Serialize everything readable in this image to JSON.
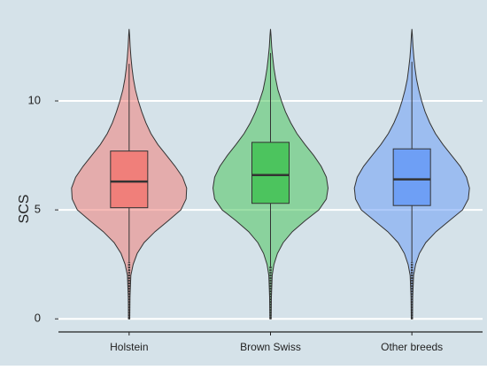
{
  "chart_data": {
    "type": "violin",
    "y_label": "SCS",
    "ylim": [
      -0.6,
      13.9
    ],
    "yticks": [
      0,
      5,
      10
    ],
    "grid": true,
    "density_y": [
      0,
      1,
      2,
      2.5,
      3,
      3.5,
      4,
      4.5,
      5,
      5.5,
      6,
      6.5,
      7,
      7.5,
      8,
      8.5,
      9,
      9.5,
      10,
      10.5,
      11,
      11.5,
      12,
      12.5,
      13,
      13.3
    ],
    "series": [
      {
        "name": "Holstein",
        "color": "#f07f7a",
        "q1": 5.1,
        "median": 6.3,
        "q3": 7.7,
        "whislo": 2.6,
        "whishi": 11.7,
        "density": [
          0.01,
          0.015,
          0.03,
          0.07,
          0.14,
          0.26,
          0.45,
          0.68,
          0.9,
          0.99,
          1.0,
          0.93,
          0.8,
          0.65,
          0.5,
          0.38,
          0.29,
          0.22,
          0.16,
          0.11,
          0.075,
          0.05,
          0.032,
          0.018,
          0.008,
          0
        ]
      },
      {
        "name": "Brown Swiss",
        "color": "#4cc45e",
        "q1": 5.3,
        "median": 6.6,
        "q3": 8.1,
        "whislo": 2.4,
        "whishi": 12.2,
        "density": [
          0.01,
          0.015,
          0.03,
          0.06,
          0.12,
          0.22,
          0.38,
          0.6,
          0.84,
          0.97,
          1.0,
          0.97,
          0.88,
          0.75,
          0.6,
          0.46,
          0.35,
          0.26,
          0.19,
          0.13,
          0.09,
          0.06,
          0.038,
          0.02,
          0.009,
          0
        ]
      },
      {
        "name": "Other breeds",
        "color": "#6e9ff5",
        "q1": 5.2,
        "median": 6.4,
        "q3": 7.8,
        "whislo": 2.6,
        "whishi": 11.8,
        "density": [
          0.01,
          0.015,
          0.03,
          0.065,
          0.13,
          0.24,
          0.42,
          0.65,
          0.88,
          0.98,
          1.0,
          0.95,
          0.84,
          0.69,
          0.54,
          0.41,
          0.31,
          0.23,
          0.17,
          0.12,
          0.08,
          0.055,
          0.034,
          0.019,
          0.008,
          0
        ]
      }
    ]
  }
}
